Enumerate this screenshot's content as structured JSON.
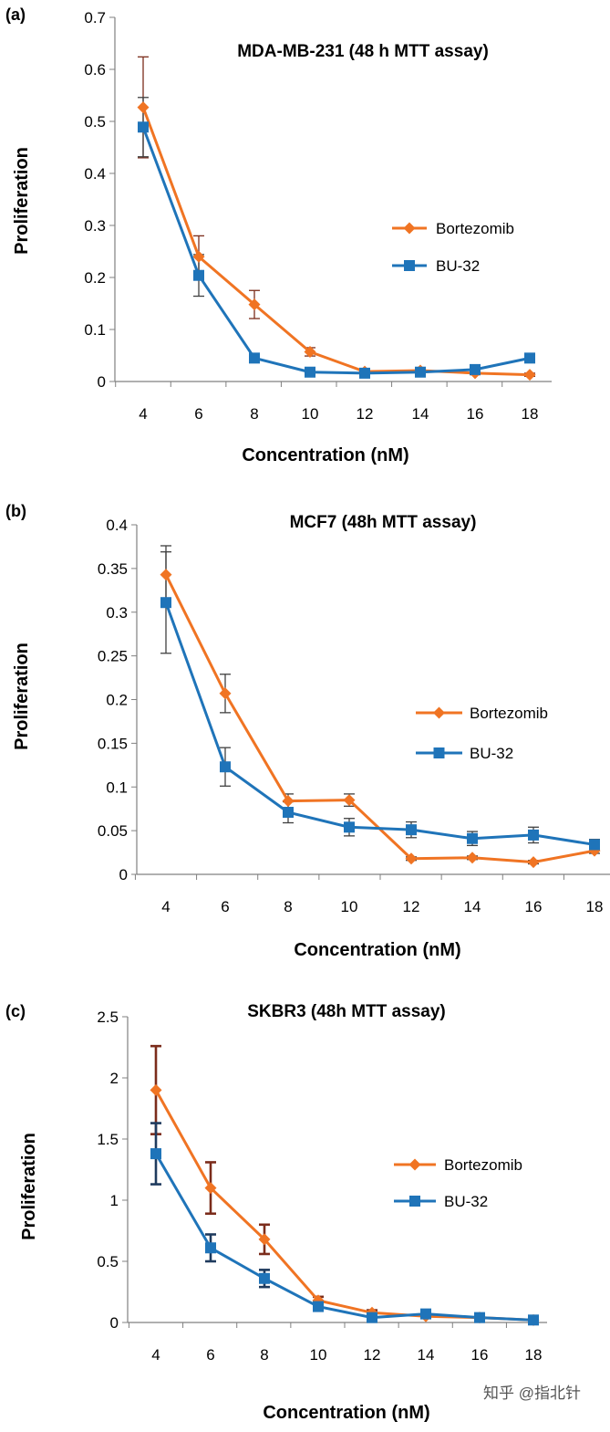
{
  "watermark": "知乎 @指北针",
  "colors": {
    "bortezomib": "#F07423",
    "bu32": "#1F74B9",
    "err_dark": "#7B2C1B",
    "err_navy": "#1F3B5E",
    "axis": "#808080"
  },
  "chart_data": [
    {
      "panel": "(a)",
      "type": "line",
      "title": "MDA-MB-231 (48 h MTT assay)",
      "xlabel": "Concentration (nM)",
      "ylabel": "Proliferation",
      "categories": [
        "4",
        "6",
        "8",
        "10",
        "12",
        "14",
        "16",
        "18"
      ],
      "ylim": [
        0,
        0.7
      ],
      "yticks": [
        "0",
        "0.1",
        "0.2",
        "0.3",
        "0.4",
        "0.5",
        "0.6",
        "0.7"
      ],
      "legend_position": "right-middle",
      "series": [
        {
          "name": "Bortezomib",
          "marker": "diamond",
          "values": [
            0.527,
            0.24,
            0.148,
            0.057,
            0.019,
            0.021,
            0.016,
            0.013
          ],
          "errors": [
            0.097,
            0.04,
            0.027,
            0.008,
            0.003,
            0.003,
            0.003,
            0.003
          ]
        },
        {
          "name": "BU-32",
          "marker": "square",
          "values": [
            0.489,
            0.204,
            0.045,
            0.018,
            0.016,
            0.018,
            0.023,
            0.045
          ],
          "errors": [
            0.057,
            0.04,
            0.005,
            0.003,
            0.003,
            0.003,
            0.003,
            0.005
          ]
        }
      ]
    },
    {
      "panel": "(b)",
      "type": "line",
      "title": "MCF7 (48h MTT assay)",
      "xlabel": "Concentration (nM)",
      "ylabel": "Proliferation",
      "categories": [
        "4",
        "6",
        "8",
        "10",
        "12",
        "14",
        "16",
        "18"
      ],
      "ylim": [
        0,
        0.4
      ],
      "yticks": [
        "0",
        "0.05",
        "0.1",
        "0.15",
        "0.2",
        "0.25",
        "0.3",
        "0.35",
        "0.4"
      ],
      "legend_position": "right-middle",
      "series": [
        {
          "name": "Bortezomib",
          "marker": "diamond",
          "values": [
            0.343,
            0.207,
            0.084,
            0.085,
            0.018,
            0.019,
            0.014,
            0.027
          ],
          "errors": [
            0.033,
            0.022,
            0.008,
            0.007,
            0.002,
            0.002,
            0.002,
            0.003
          ]
        },
        {
          "name": "BU-32",
          "marker": "square",
          "values": [
            0.311,
            0.123,
            0.071,
            0.054,
            0.051,
            0.041,
            0.045,
            0.034
          ],
          "errors": [
            0.058,
            0.022,
            0.012,
            0.01,
            0.009,
            0.008,
            0.009,
            0.006
          ]
        }
      ]
    },
    {
      "panel": "(c)",
      "type": "line",
      "title": "SKBR3 (48h MTT assay)",
      "xlabel": "Concentration (nM)",
      "ylabel": "Proliferation",
      "categories": [
        "4",
        "6",
        "8",
        "10",
        "12",
        "14",
        "16",
        "18"
      ],
      "ylim": [
        0,
        2.5
      ],
      "yticks": [
        "0",
        "0.5",
        "1",
        "1.5",
        "2",
        "2.5"
      ],
      "legend_position": "right-middle",
      "series": [
        {
          "name": "Bortezomib",
          "marker": "diamond",
          "values": [
            1.9,
            1.1,
            0.68,
            0.18,
            0.08,
            0.05,
            0.04,
            0.02
          ],
          "errors": [
            0.36,
            0.21,
            0.12,
            0.03,
            0.02,
            0.01,
            0.01,
            0.01
          ]
        },
        {
          "name": "BU-32",
          "marker": "square",
          "values": [
            1.38,
            0.61,
            0.36,
            0.13,
            0.04,
            0.07,
            0.04,
            0.02
          ],
          "errors": [
            0.25,
            0.11,
            0.07,
            0.02,
            0.01,
            0.01,
            0.01,
            0.01
          ]
        }
      ]
    }
  ]
}
